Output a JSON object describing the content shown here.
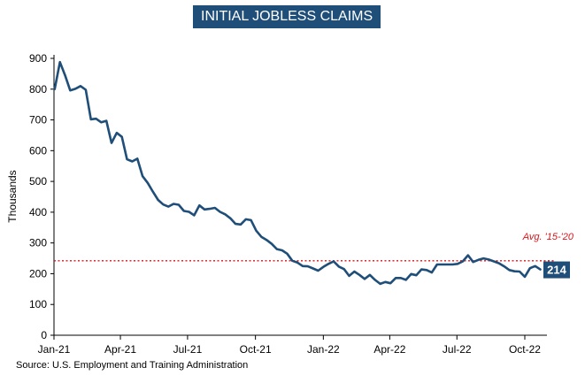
{
  "chart_data": {
    "type": "line",
    "title": "INITIAL JOBLESS CLAIMS",
    "ylabel": "Thousands",
    "xlabel": "",
    "source": "Source: U.S. Employment and Training Administration",
    "ylim": [
      0,
      900
    ],
    "yticks": [
      0,
      100,
      200,
      300,
      400,
      500,
      600,
      700,
      800,
      900
    ],
    "xticks": [
      {
        "label": "Jan-21",
        "date": "2021-01-01"
      },
      {
        "label": "Apr-21",
        "date": "2021-04-01"
      },
      {
        "label": "Jul-21",
        "date": "2021-07-01"
      },
      {
        "label": "Oct-21",
        "date": "2021-10-01"
      },
      {
        "label": "Jan-22",
        "date": "2022-01-01"
      },
      {
        "label": "Apr-22",
        "date": "2022-04-01"
      },
      {
        "label": "Jul-22",
        "date": "2022-07-01"
      },
      {
        "label": "Oct-22",
        "date": "2022-10-01"
      }
    ],
    "xlim": [
      "2021-01-01",
      "2022-10-31"
    ],
    "grid": false,
    "reference_line": {
      "label": "Avg. '15-'20",
      "value": 242,
      "color": "#d9161c"
    },
    "end_label": "214",
    "line_color": "#1f4e79",
    "series": [
      {
        "name": "",
        "points": [
          [
            "2021-01-02",
            800
          ],
          [
            "2021-01-09",
            888
          ],
          [
            "2021-01-16",
            845
          ],
          [
            "2021-01-23",
            796
          ],
          [
            "2021-01-30",
            801
          ],
          [
            "2021-02-06",
            810
          ],
          [
            "2021-02-13",
            798
          ],
          [
            "2021-02-20",
            702
          ],
          [
            "2021-02-27",
            704
          ],
          [
            "2021-03-06",
            692
          ],
          [
            "2021-03-13",
            697
          ],
          [
            "2021-03-20",
            625
          ],
          [
            "2021-03-27",
            658
          ],
          [
            "2021-04-03",
            645
          ],
          [
            "2021-04-10",
            572
          ],
          [
            "2021-04-17",
            565
          ],
          [
            "2021-04-24",
            574
          ],
          [
            "2021-05-01",
            517
          ],
          [
            "2021-05-08",
            495
          ],
          [
            "2021-05-15",
            467
          ],
          [
            "2021-05-22",
            440
          ],
          [
            "2021-05-29",
            425
          ],
          [
            "2021-06-05",
            418
          ],
          [
            "2021-06-12",
            427
          ],
          [
            "2021-06-19",
            424
          ],
          [
            "2021-06-26",
            404
          ],
          [
            "2021-07-03",
            401
          ],
          [
            "2021-07-10",
            390
          ],
          [
            "2021-07-17",
            422
          ],
          [
            "2021-07-24",
            409
          ],
          [
            "2021-07-31",
            411
          ],
          [
            "2021-08-07",
            414
          ],
          [
            "2021-08-14",
            401
          ],
          [
            "2021-08-21",
            393
          ],
          [
            "2021-08-28",
            380
          ],
          [
            "2021-09-04",
            362
          ],
          [
            "2021-09-11",
            360
          ],
          [
            "2021-09-18",
            377
          ],
          [
            "2021-09-25",
            374
          ],
          [
            "2021-10-02",
            340
          ],
          [
            "2021-10-09",
            320
          ],
          [
            "2021-10-16",
            310
          ],
          [
            "2021-10-23",
            297
          ],
          [
            "2021-10-30",
            280
          ],
          [
            "2021-11-06",
            276
          ],
          [
            "2021-11-13",
            265
          ],
          [
            "2021-11-20",
            242
          ],
          [
            "2021-11-27",
            236
          ],
          [
            "2021-12-04",
            225
          ],
          [
            "2021-12-11",
            224
          ],
          [
            "2021-12-18",
            217
          ],
          [
            "2021-12-25",
            210
          ],
          [
            "2022-01-01",
            222
          ],
          [
            "2022-01-08",
            232
          ],
          [
            "2022-01-15",
            240
          ],
          [
            "2022-01-22",
            223
          ],
          [
            "2022-01-29",
            215
          ],
          [
            "2022-02-05",
            193
          ],
          [
            "2022-02-12",
            207
          ],
          [
            "2022-02-19",
            196
          ],
          [
            "2022-02-26",
            183
          ],
          [
            "2022-03-05",
            196
          ],
          [
            "2022-03-12",
            180
          ],
          [
            "2022-03-19",
            167
          ],
          [
            "2022-03-26",
            173
          ],
          [
            "2022-04-02",
            169
          ],
          [
            "2022-04-09",
            186
          ],
          [
            "2022-04-16",
            186
          ],
          [
            "2022-04-23",
            180
          ],
          [
            "2022-04-30",
            199
          ],
          [
            "2022-05-07",
            195
          ],
          [
            "2022-05-14",
            214
          ],
          [
            "2022-05-21",
            212
          ],
          [
            "2022-05-28",
            204
          ],
          [
            "2022-06-04",
            230
          ],
          [
            "2022-06-11",
            230
          ],
          [
            "2022-06-18",
            230
          ],
          [
            "2022-06-25",
            230
          ],
          [
            "2022-07-02",
            232
          ],
          [
            "2022-07-09",
            240
          ],
          [
            "2022-07-16",
            260
          ],
          [
            "2022-07-23",
            238
          ],
          [
            "2022-07-30",
            245
          ],
          [
            "2022-08-06",
            250
          ],
          [
            "2022-08-13",
            246
          ],
          [
            "2022-08-20",
            240
          ],
          [
            "2022-08-27",
            234
          ],
          [
            "2022-09-03",
            224
          ],
          [
            "2022-09-10",
            212
          ],
          [
            "2022-09-17",
            208
          ],
          [
            "2022-09-24",
            207
          ],
          [
            "2022-10-01",
            190
          ],
          [
            "2022-10-08",
            218
          ],
          [
            "2022-10-15",
            225
          ],
          [
            "2022-10-22",
            214
          ]
        ]
      }
    ]
  }
}
